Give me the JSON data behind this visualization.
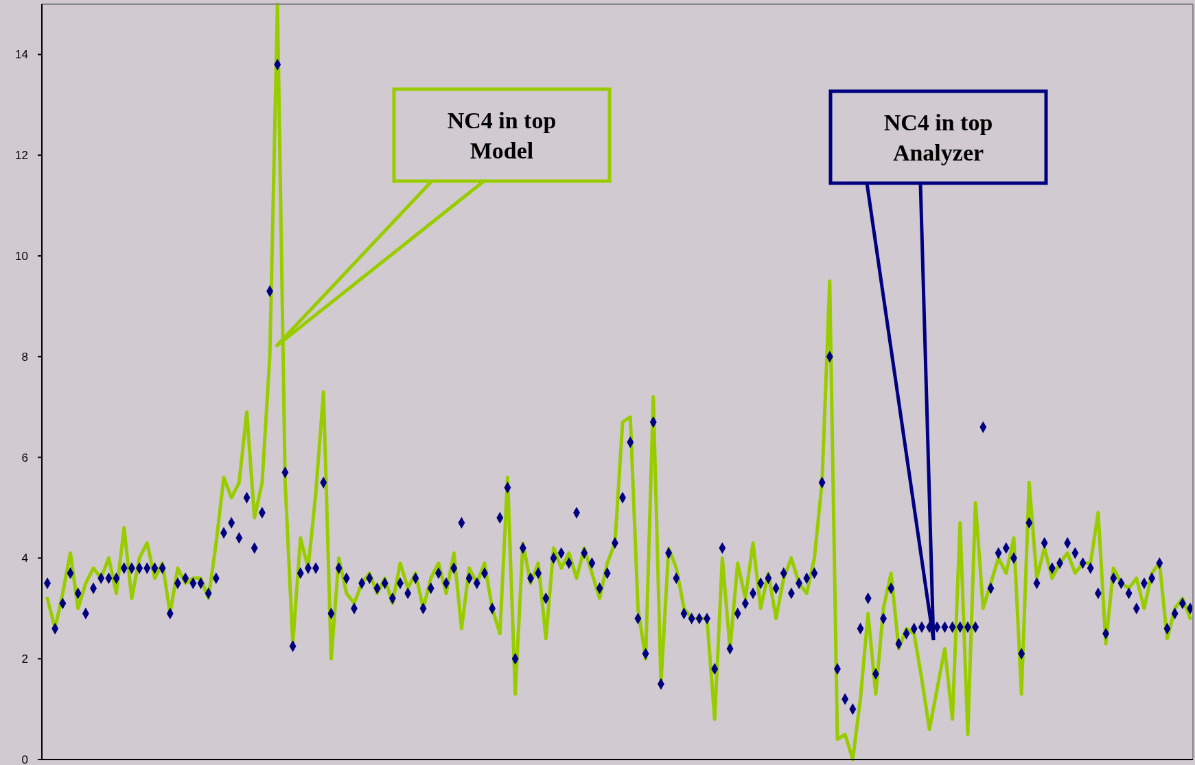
{
  "chart_data": {
    "type": "line",
    "categories": [
      null,
      null,
      null,
      null,
      null,
      null,
      null,
      null,
      null,
      null,
      null,
      null,
      null,
      null,
      null,
      null,
      null,
      null,
      null,
      null,
      null,
      null,
      null,
      null,
      null,
      null,
      null,
      null,
      null,
      null,
      null,
      null,
      null,
      null,
      null,
      null,
      null,
      null,
      null,
      null,
      null,
      null,
      null,
      null,
      null,
      null,
      null,
      null,
      null,
      null,
      null,
      null,
      null,
      null,
      null,
      null,
      null,
      null,
      null,
      null,
      null,
      null,
      null,
      null,
      null,
      null,
      null,
      null,
      null,
      null,
      null,
      null,
      null,
      null,
      null,
      null,
      null,
      null,
      null,
      null,
      null,
      null,
      null,
      null,
      null,
      null,
      null,
      null,
      null,
      null,
      null,
      null,
      null,
      null,
      null,
      null,
      null,
      null,
      null,
      null,
      null,
      null,
      null,
      null,
      null,
      null,
      null,
      null,
      null,
      null,
      null,
      null,
      null,
      null,
      null,
      null,
      null,
      null,
      null,
      null,
      null,
      null,
      null,
      null,
      null,
      null,
      null,
      null,
      null,
      null,
      null,
      null,
      null,
      null,
      null,
      null,
      null,
      null,
      null,
      null,
      null,
      null,
      null,
      null,
      null,
      null,
      null,
      null,
      null,
      null
    ],
    "series": [
      {
        "type": "line",
        "color": "#99cc00",
        "line_style": "solid",
        "marker": "none",
        "values": [
          3.2,
          2.6,
          3.3,
          4.1,
          3.0,
          3.5,
          3.8,
          3.6,
          4.0,
          3.3,
          4.6,
          3.2,
          4.0,
          4.3,
          3.6,
          3.9,
          2.9,
          3.8,
          3.5,
          3.6,
          3.6,
          3.2,
          4.3,
          5.6,
          5.2,
          5.5,
          6.9,
          4.8,
          5.5,
          8.0,
          15,
          5.5,
          2.3,
          4.4,
          3.8,
          5.3,
          7.3,
          2.0,
          4.0,
          3.3,
          3.1,
          3.5,
          3.7,
          3.3,
          3.6,
          3.1,
          3.9,
          3.4,
          3.7,
          3.0,
          3.6,
          3.9,
          3.3,
          4.1,
          2.6,
          3.8,
          3.5,
          3.9,
          3.0,
          2.5,
          5.6,
          1.3,
          4.3,
          3.5,
          3.9,
          2.4,
          4.2,
          3.8,
          4.1,
          3.6,
          4.2,
          3.7,
          3.2,
          3.9,
          4.3,
          6.7,
          6.8,
          3.0,
          2.0,
          7.2,
          1.5,
          4.2,
          3.8,
          3.0,
          2.8,
          2.8,
          2.8,
          0.8,
          4.0,
          2.2,
          3.9,
          3.2,
          4.3,
          3.0,
          3.7,
          2.8,
          3.6,
          4.0,
          3.5,
          3.3,
          4.0,
          5.5,
          9.5,
          0.4,
          0.5,
          0,
          1.2,
          2.9,
          1.3,
          3.0,
          3.7,
          2.2,
          2.6,
          2.5,
          1.6,
          0.6,
          1.4,
          2.2,
          0.8,
          4.7,
          0.5,
          5.1,
          3.0,
          3.5,
          4.0,
          3.7,
          4.4,
          1.3,
          5.5,
          3.6,
          4.2,
          3.6,
          3.9,
          4.1,
          3.7,
          3.9,
          3.9,
          4.9,
          2.3,
          3.8,
          3.5,
          3.4,
          3.6,
          3.0,
          3.7,
          3.9,
          2.4,
          3.0,
          3.2,
          2.8
        ]
      },
      {
        "type": "scatter",
        "color": "#000080",
        "marker": "diamond",
        "values": [
          3.5,
          2.6,
          3.1,
          3.7,
          3.3,
          2.9,
          3.4,
          3.6,
          3.6,
          3.6,
          3.8,
          3.8,
          3.8,
          3.8,
          3.8,
          3.8,
          2.9,
          3.5,
          3.6,
          3.5,
          3.5,
          3.3,
          3.6,
          4.5,
          4.7,
          4.4,
          5.2,
          4.2,
          4.9,
          9.3,
          13.8,
          5.7,
          2.25,
          3.7,
          3.8,
          3.8,
          5.5,
          2.9,
          3.8,
          3.6,
          3.0,
          3.5,
          3.6,
          3.4,
          3.5,
          3.2,
          3.5,
          3.3,
          3.6,
          3.0,
          3.4,
          3.7,
          3.5,
          3.8,
          4.7,
          3.6,
          3.5,
          3.7,
          3.0,
          4.8,
          5.4,
          2.0,
          4.2,
          3.6,
          3.7,
          3.2,
          4.0,
          4.1,
          3.9,
          4.9,
          4.1,
          3.9,
          3.4,
          3.7,
          4.3,
          5.2,
          6.3,
          2.8,
          2.1,
          6.7,
          1.5,
          4.1,
          3.6,
          2.9,
          2.8,
          2.8,
          2.8,
          1.8,
          4.2,
          2.2,
          2.9,
          3.1,
          3.3,
          3.5,
          3.6,
          3.4,
          3.7,
          3.3,
          3.5,
          3.6,
          3.7,
          5.5,
          8.0,
          1.8,
          1.2,
          1.0,
          2.6,
          3.2,
          1.7,
          2.8,
          3.4,
          2.3,
          2.5,
          2.6,
          2.63,
          2.63,
          2.63,
          2.63,
          2.63,
          2.63,
          2.63,
          2.63,
          6.6,
          3.4,
          4.1,
          4.2,
          4.0,
          2.1,
          4.7,
          3.5,
          4.3,
          3.8,
          3.9,
          4.3,
          4.1,
          3.9,
          3.8,
          3.3,
          2.5,
          3.6,
          3.5,
          3.3,
          3.0,
          3.5,
          3.6,
          3.9,
          2.6,
          2.9,
          3.1,
          3.0
        ]
      }
    ],
    "ylim": [
      0,
      15
    ],
    "yticks": [
      0,
      2,
      4,
      6,
      8,
      10,
      12,
      14
    ],
    "grid": false,
    "legend": false,
    "tick_labels": "y",
    "annotations": [
      "NC4 in top\nModel",
      "NC4 in top\nAnalyzer"
    ]
  }
}
